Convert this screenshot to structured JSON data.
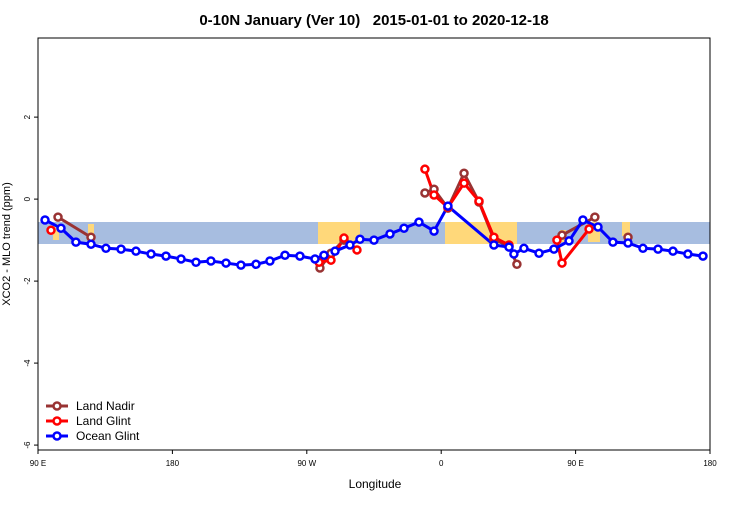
{
  "chart_data": {
    "type": "line",
    "title": "0-10N January (Ver 10)   2015-01-01 to 2020-12-18",
    "x_label": "Longitude",
    "y_label": "XCO2 - MLO trend (ppm)",
    "xlim": [
      90,
      540
    ],
    "ylim": [
      -6.12,
      3.93
    ],
    "xticks": [
      {
        "value": 90,
        "label": "90 E"
      },
      180,
      {
        "value": 270,
        "label": "90 W"
      },
      {
        "value": 360,
        "label": "0"
      },
      {
        "value": 450,
        "label": "90 E"
      },
      {
        "value": 540,
        "label": "180"
      }
    ],
    "yticks": [
      -6,
      -4,
      -2,
      0,
      2
    ],
    "legend": "bottom-left",
    "series": [
      {
        "name": "Land Nadir",
        "color": "#993333",
        "x": [
          103.4,
          125.5,
          null,
          278.8,
          286.2,
          294.9,
          null,
          349.1,
          355.2,
          364.5,
          375.3,
          385.3,
          395.3,
          405.4,
          410.7,
          null,
          440.9,
          462.9,
          null,
          485.1
        ],
        "values": [
          -0.44,
          -0.93,
          null,
          -1.68,
          -1.32,
          -1.0,
          null,
          0.15,
          0.24,
          -0.22,
          0.63,
          -0.07,
          -0.98,
          -1.15,
          -1.59,
          null,
          -0.88,
          -0.44,
          null,
          -0.93
        ]
      },
      {
        "name": "Land Glint",
        "color": "#ff0000",
        "x": [
          98.7,
          null,
          278.2,
          286.2,
          294.9,
          303.6,
          null,
          349.1,
          355.2,
          364.5,
          375.3,
          385.3,
          395.3,
          405.4,
          null,
          437.5,
          440.9,
          459.0
        ],
        "values": [
          -0.76,
          null,
          -1.54,
          -1.49,
          -0.95,
          -1.24,
          null,
          0.73,
          0.1,
          -0.2,
          0.39,
          -0.05,
          -0.93,
          -1.12,
          null,
          -1.0,
          -1.56,
          -0.73
        ]
      },
      {
        "name": "Ocean Glint",
        "color": "#0000ff",
        "x": [
          94.7,
          105.4,
          115.4,
          125.5,
          135.5,
          145.6,
          155.6,
          165.7,
          175.7,
          185.8,
          195.8,
          205.8,
          215.9,
          225.9,
          236.0,
          245.3,
          255.4,
          265.4,
          275.5,
          281.5,
          288.9,
          298.9,
          305.6,
          315.0,
          325.7,
          335.1,
          345.1,
          355.2,
          364.5,
          395.3,
          405.4,
          408.7,
          415.4,
          425.5,
          435.5,
          445.6,
          454.9,
          465.0,
          475.0,
          485.1,
          495.1,
          505.2,
          515.2,
          525.2,
          535.3
        ],
        "values": [
          -0.51,
          -0.71,
          -1.05,
          -1.1,
          -1.2,
          -1.22,
          -1.27,
          -1.34,
          -1.39,
          -1.46,
          -1.54,
          -1.51,
          -1.56,
          -1.61,
          -1.59,
          -1.51,
          -1.37,
          -1.39,
          -1.46,
          -1.37,
          -1.27,
          -1.12,
          -0.98,
          -1.0,
          -0.85,
          -0.71,
          -0.56,
          -0.78,
          -0.17,
          -1.12,
          -1.17,
          -1.34,
          -1.2,
          -1.32,
          -1.22,
          -1.02,
          -0.51,
          -0.68,
          -1.05,
          -1.07,
          -1.2,
          -1.22,
          -1.27,
          -1.34,
          -1.39
        ]
      }
    ]
  }
}
